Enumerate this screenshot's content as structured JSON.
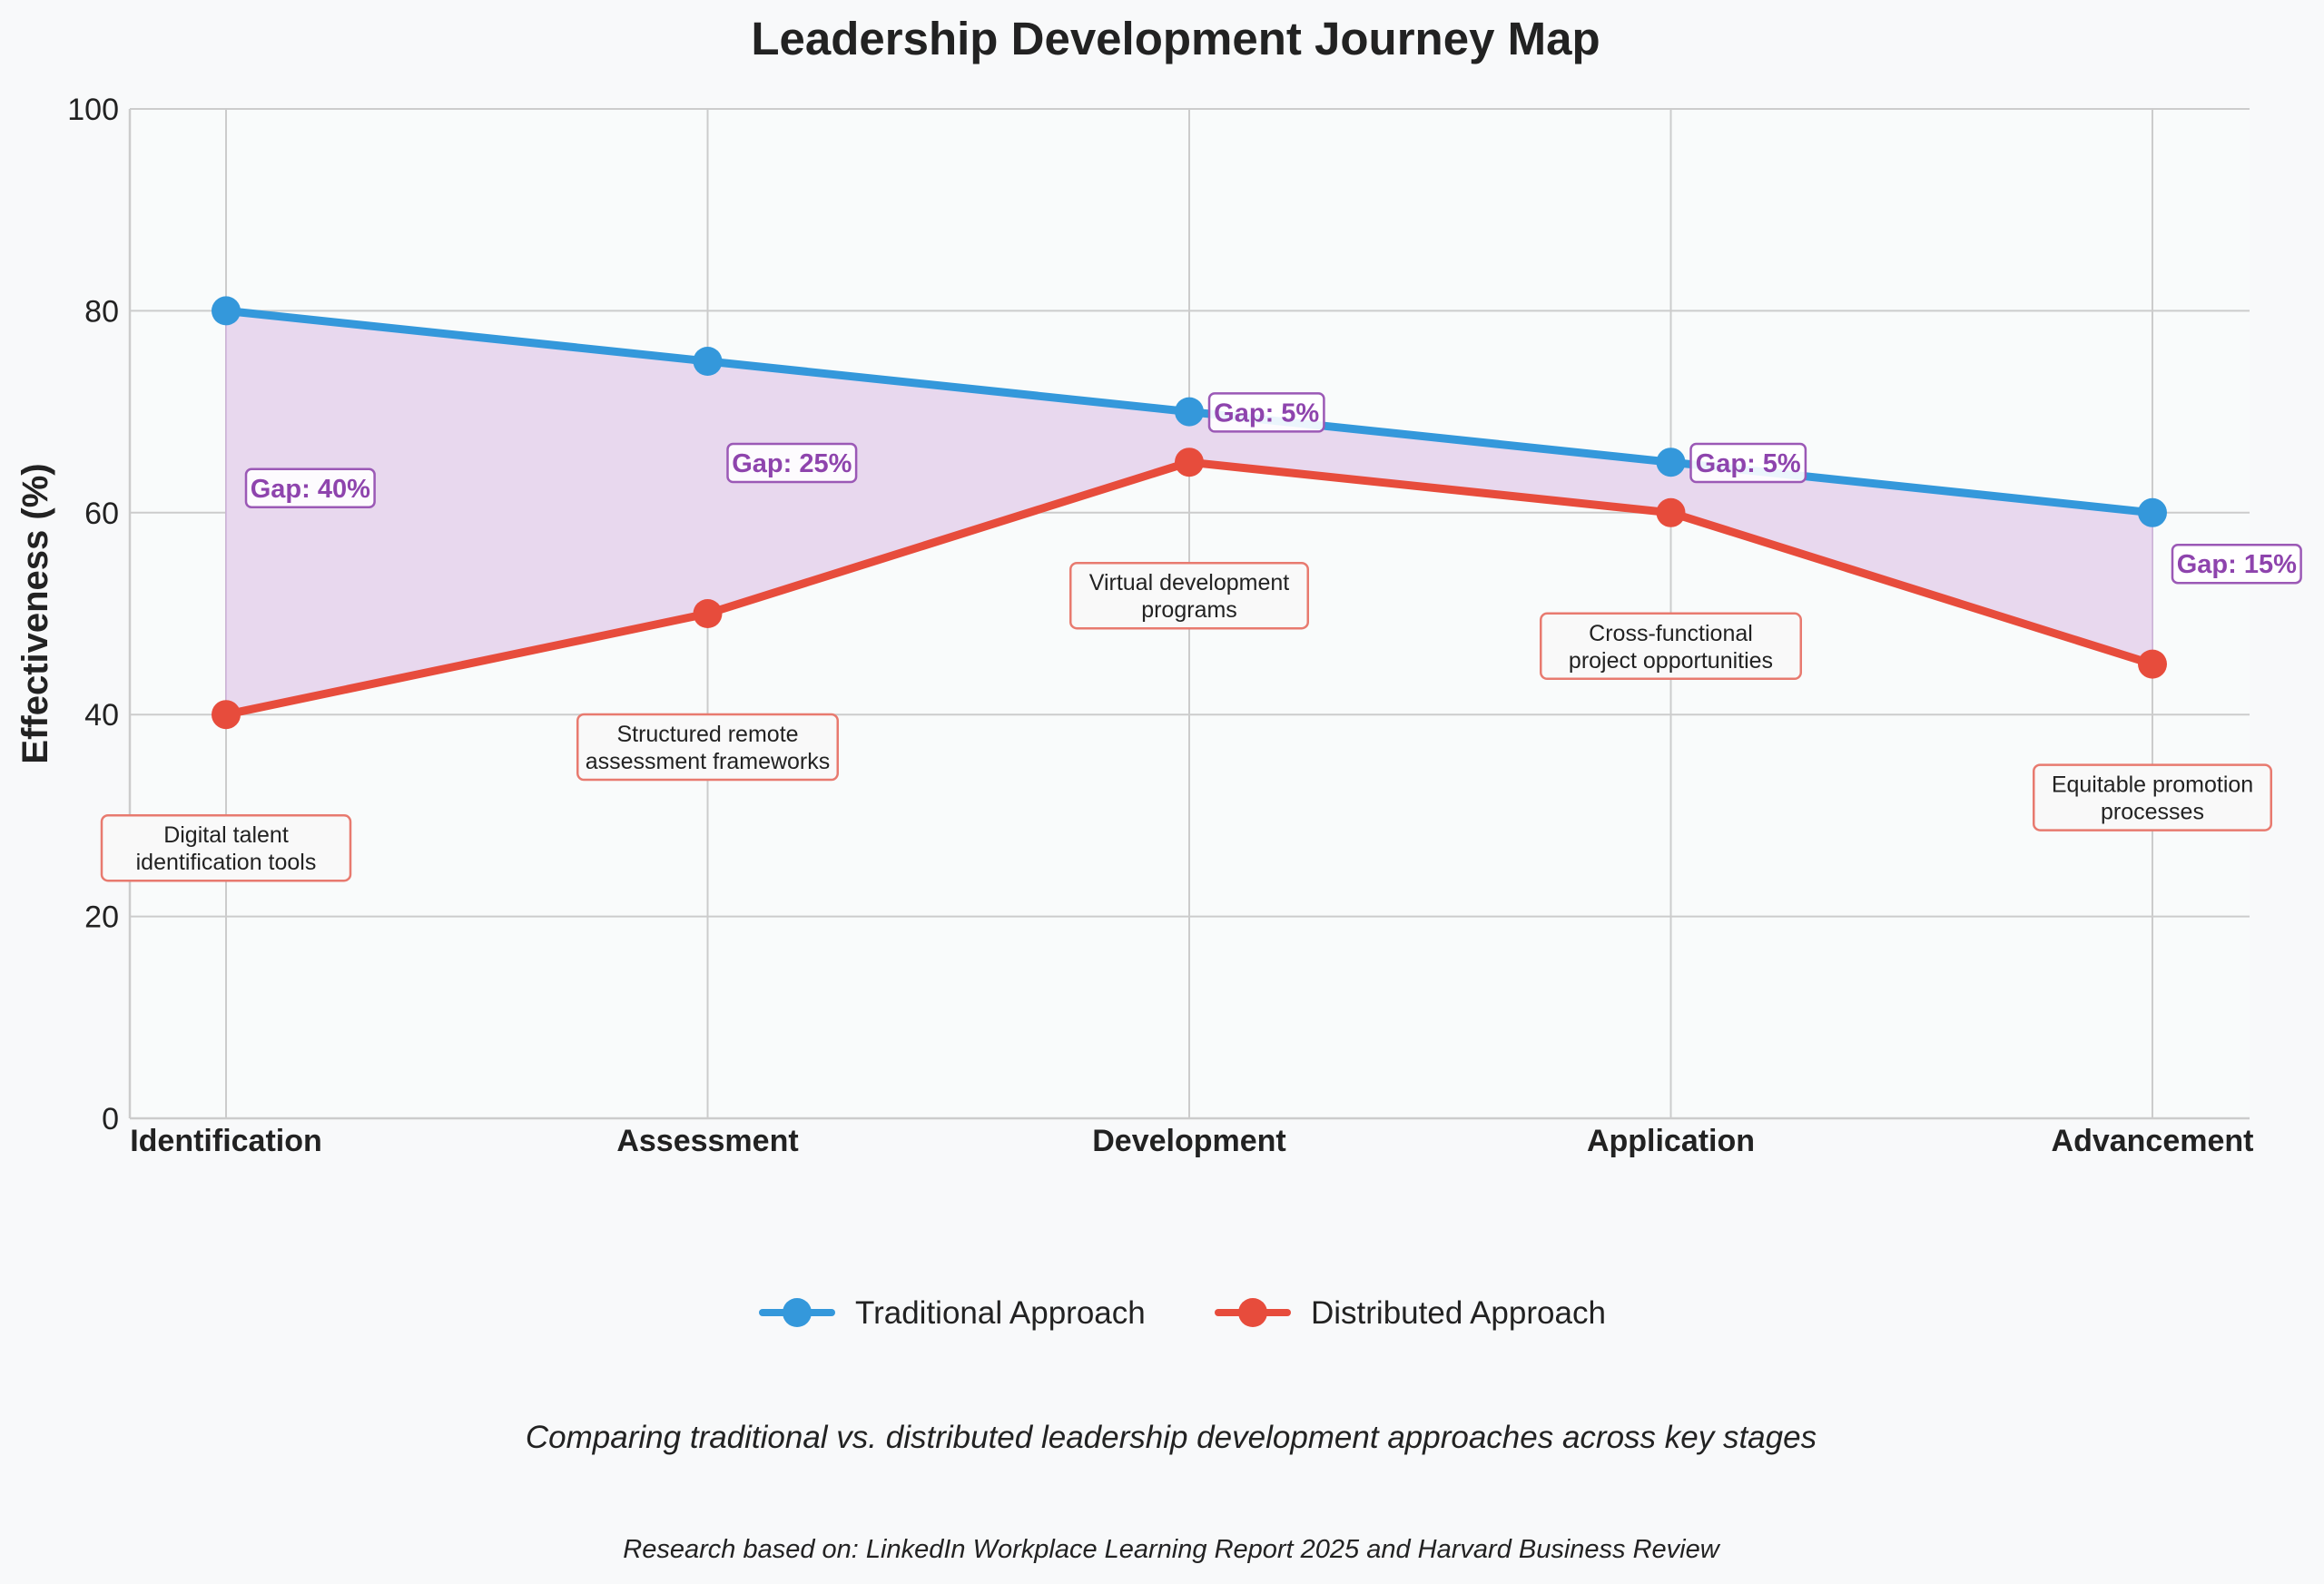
{
  "chart_data": {
    "type": "line",
    "title": "Leadership Development Journey Map",
    "xlabel": "",
    "ylabel": "Effectiveness (%)",
    "ylim": [
      0,
      100
    ],
    "yticks": [
      "0",
      "20",
      "40",
      "60",
      "80",
      "100"
    ],
    "categories": [
      "Identification",
      "Assessment",
      "Development",
      "Application",
      "Advancement"
    ],
    "series": [
      {
        "name": "Traditional Approach",
        "color": "#3498db",
        "values": [
          80,
          75,
          70,
          65,
          60
        ]
      },
      {
        "name": "Distributed Approach",
        "color": "#e74c3c",
        "values": [
          40,
          50,
          65,
          60,
          45
        ]
      }
    ],
    "gap_fill_color": "#e8d8ee",
    "gap_labels": [
      "Gap: 40%",
      "Gap: 25%",
      "Gap: 5%",
      "Gap: 5%",
      "Gap: 15%"
    ],
    "annotations": [
      [
        "Digital talent",
        "identification tools"
      ],
      [
        "Structured remote",
        "assessment frameworks"
      ],
      [
        "Virtual development",
        "programs"
      ],
      [
        "Cross-functional",
        "project opportunities"
      ],
      [
        "Equitable promotion",
        "processes"
      ]
    ],
    "grid": true,
    "legend_position": "bottom-center"
  },
  "caption": "Comparing traditional vs. distributed leadership development approaches across key stages",
  "source": "Research based on: LinkedIn Workplace Learning Report 2025 and Harvard Business Review"
}
